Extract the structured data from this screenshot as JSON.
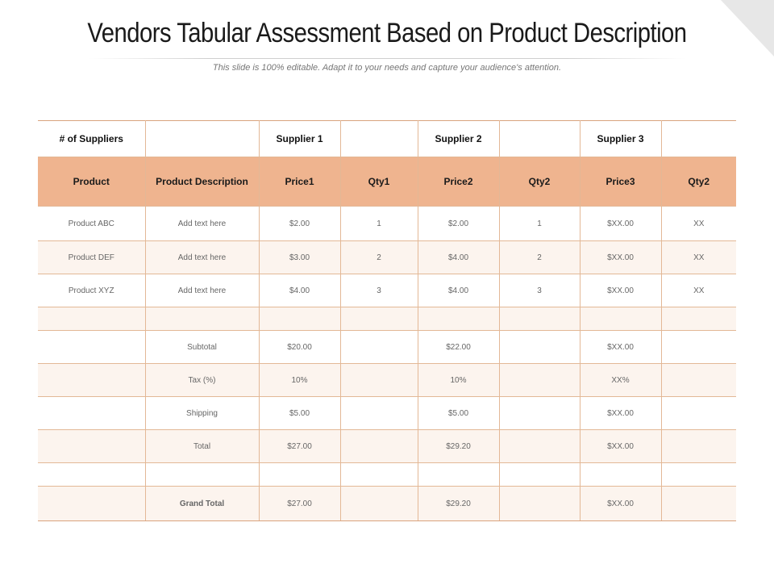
{
  "slide": {
    "title": "Vendors Tabular Assessment Based on Product Description",
    "subtitle": "This slide is 100% editable. Adapt it to your needs and capture your audience's attention."
  },
  "table": {
    "supplier_row": [
      "# of Suppliers",
      "",
      "Supplier 1",
      "",
      "Supplier 2",
      "",
      "Supplier 3",
      ""
    ],
    "header_row": [
      "Product",
      "Product Description",
      "Price1",
      "Qty1",
      "Price2",
      "Qty2",
      "Price3",
      "Qty2"
    ],
    "product_rows": [
      [
        "Product ABC",
        "Add text here",
        "$2.00",
        "1",
        "$2.00",
        "1",
        "$XX.00",
        "XX"
      ],
      [
        "Product DEF",
        "Add text here",
        "$3.00",
        "2",
        "$4.00",
        "2",
        "$XX.00",
        "XX"
      ],
      [
        "Product XYZ",
        "Add text here",
        "$4.00",
        "3",
        "$4.00",
        "3",
        "$XX.00",
        "XX"
      ]
    ],
    "summary_rows": [
      [
        "",
        "Subtotal",
        "$20.00",
        "",
        "$22.00",
        "",
        "$XX.00",
        ""
      ],
      [
        "",
        "Tax (%)",
        "10%",
        "",
        "10%",
        "",
        "XX%",
        ""
      ],
      [
        "",
        "Shipping",
        "$5.00",
        "",
        "$5.00",
        "",
        "$XX.00",
        ""
      ],
      [
        "",
        "Total",
        "$27.00",
        "",
        "$29.20",
        "",
        "$XX.00",
        ""
      ]
    ],
    "grand_total_row": [
      "",
      "Grand Total",
      "$27.00",
      "",
      "$29.20",
      "",
      "$XX.00",
      ""
    ]
  }
}
